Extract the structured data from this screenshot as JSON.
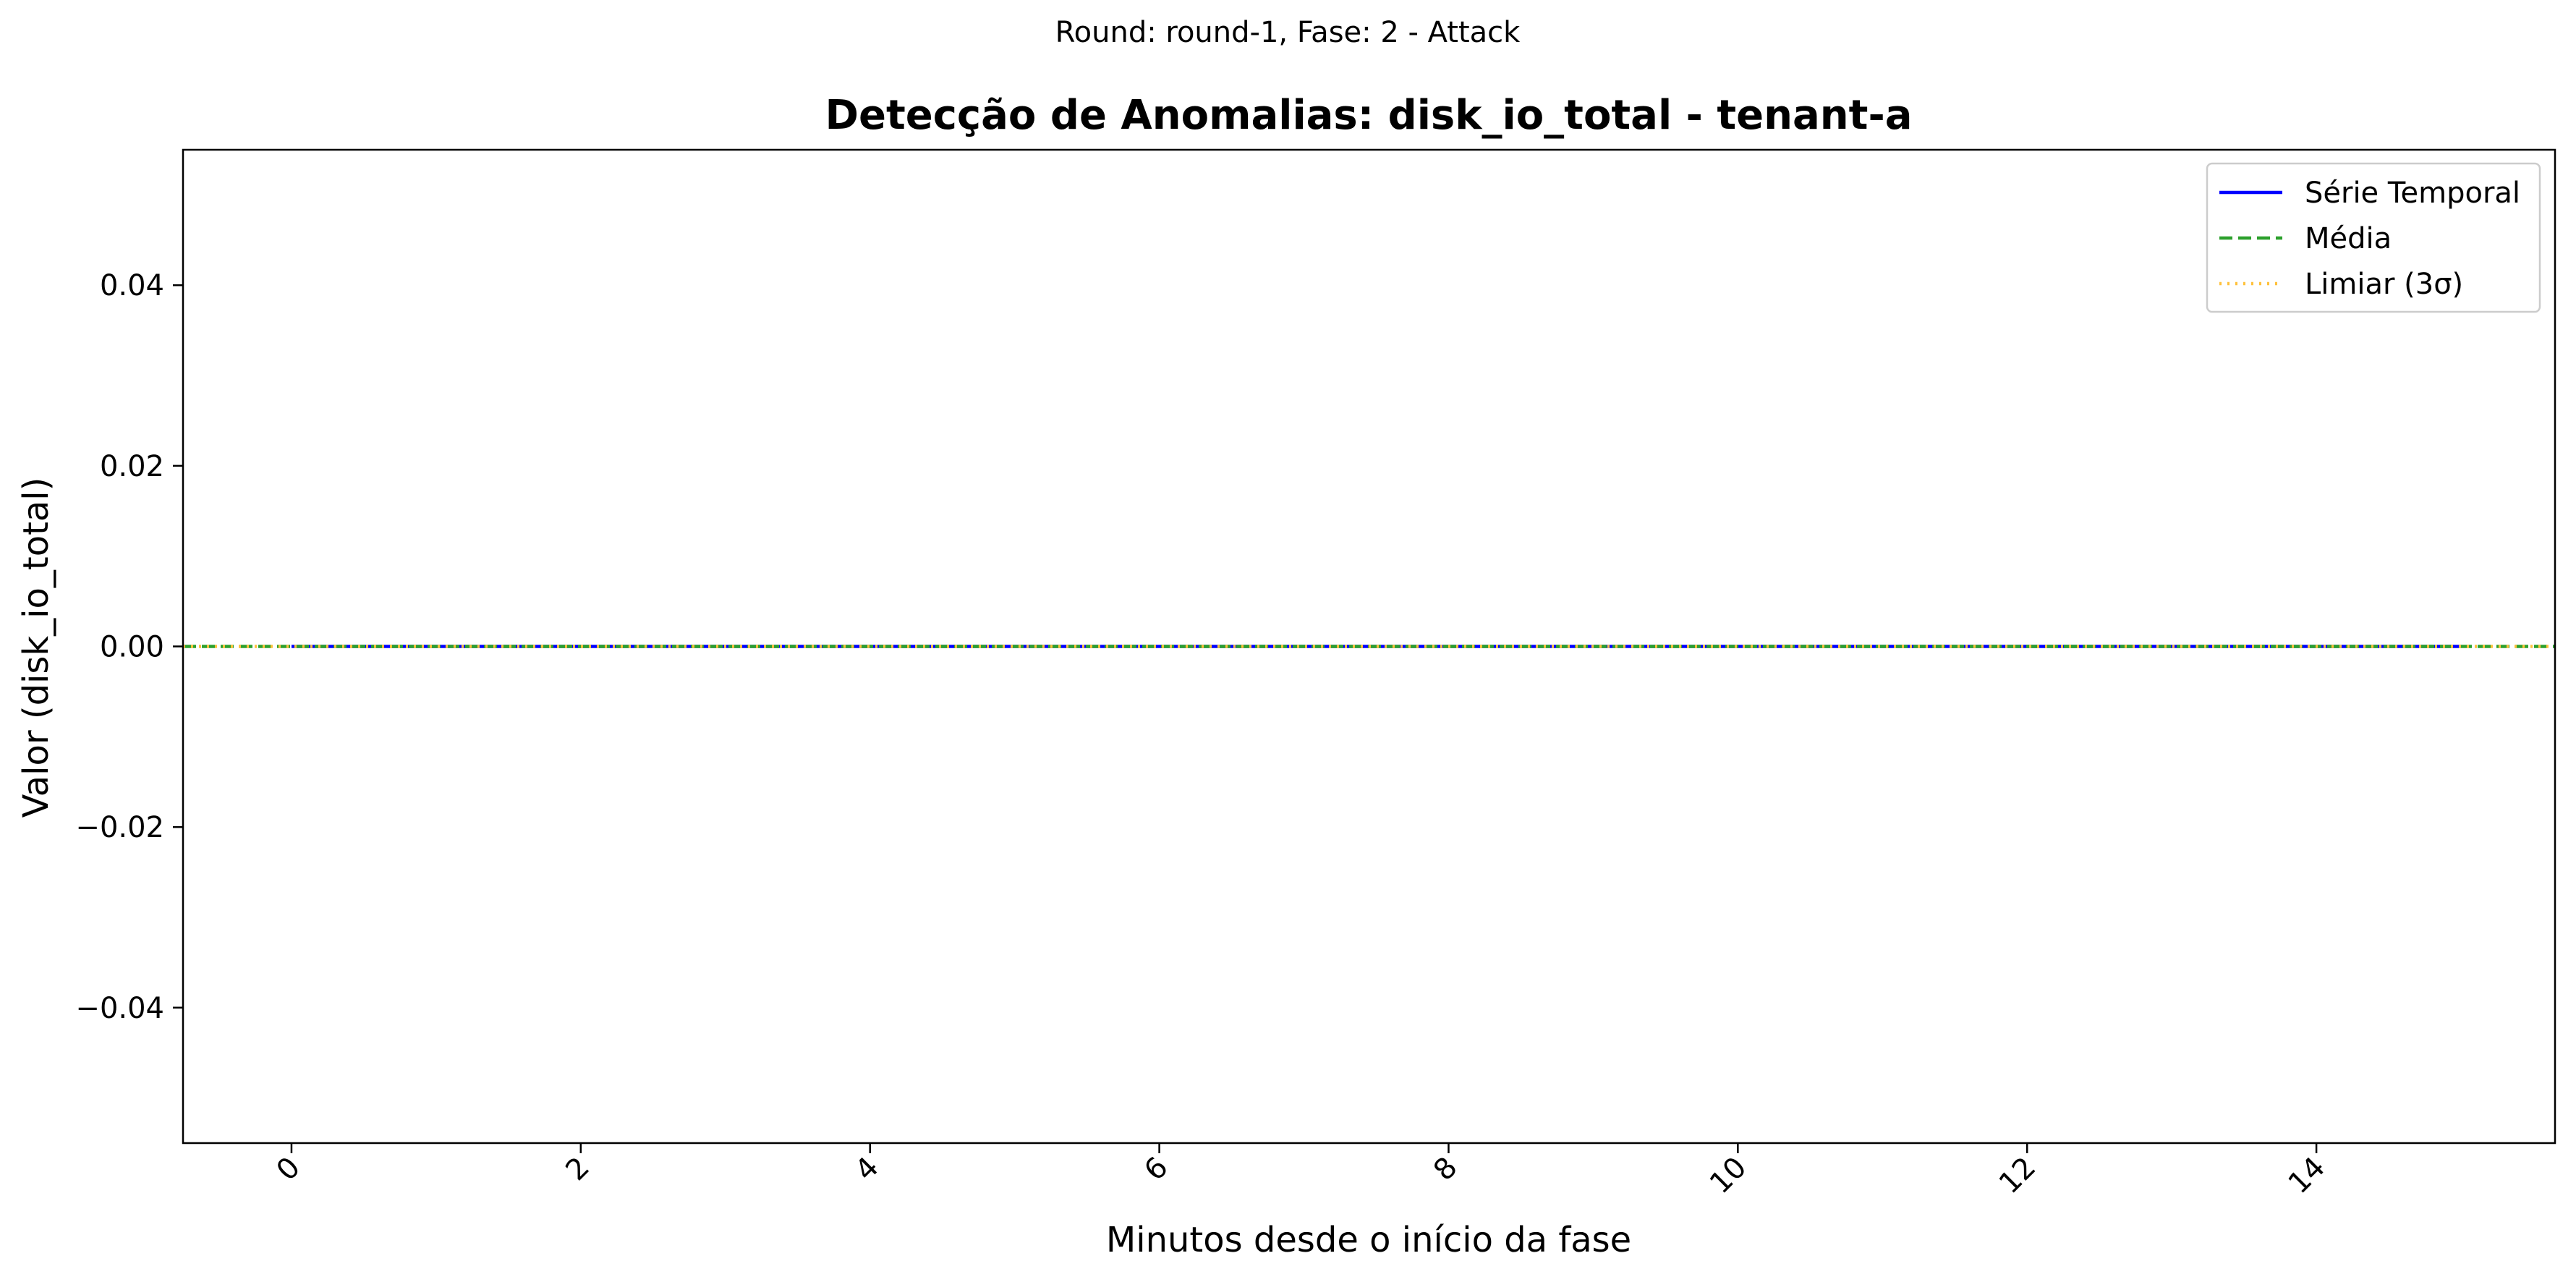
{
  "chart_data": {
    "type": "line",
    "suptitle": "Round: round-1, Fase: 2 - Attack",
    "title": "Detecção de Anomalias: disk_io_total - tenant-a",
    "xlabel": "Minutos desde o início da fase",
    "ylabel": "Valor (disk_io_total)",
    "xlim": [
      -0.75,
      15.65
    ],
    "ylim": [
      -0.055,
      0.055
    ],
    "xticks": [
      0,
      2,
      4,
      6,
      8,
      10,
      12,
      14
    ],
    "xtick_labels": [
      "0",
      "2",
      "4",
      "6",
      "8",
      "10",
      "12",
      "14"
    ],
    "yticks": [
      -0.04,
      -0.02,
      0.0,
      0.02,
      0.04
    ],
    "ytick_labels": [
      "−0.04",
      "−0.02",
      "0.00",
      "0.02",
      "0.04"
    ],
    "xtick_rotation": 45,
    "grid": false,
    "legend_position": "upper right",
    "series": [
      {
        "name": "Série Temporal",
        "color": "#0000ff",
        "style": "solid",
        "x": [
          0,
          15
        ],
        "values": [
          0,
          0
        ]
      },
      {
        "name": "Média",
        "color": "#2ca02c",
        "style": "dashed",
        "hline": 0
      },
      {
        "name": "Limiar (3σ)",
        "color": "#ffc13b",
        "style": "dotted",
        "hline": 0
      }
    ]
  }
}
